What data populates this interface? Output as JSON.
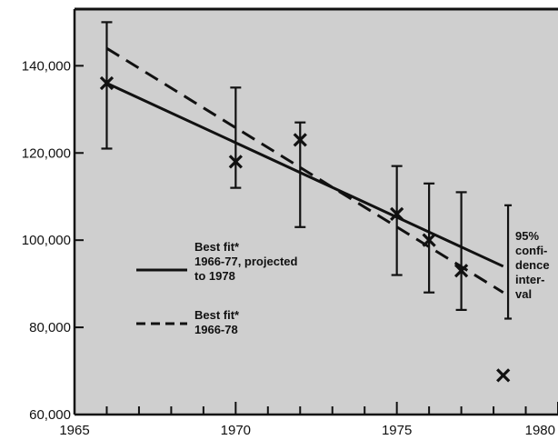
{
  "chart_data": {
    "type": "scatter",
    "x_ticks": [
      "1965",
      "1970",
      "1975",
      "1980"
    ],
    "y_ticks": [
      "60,000",
      "80,000",
      "100,000",
      "120,000",
      "140,000"
    ],
    "xlim": [
      1965,
      1980
    ],
    "ylim": [
      60000,
      153000
    ],
    "points": [
      {
        "x": 1966,
        "y": 136000,
        "low": 121000,
        "high": 150000
      },
      {
        "x": 1970,
        "y": 118000,
        "low": 112000,
        "high": 135000
      },
      {
        "x": 1972,
        "y": 123000,
        "low": 103000,
        "high": 127000
      },
      {
        "x": 1975,
        "y": 106000,
        "low": 92000,
        "high": 117000
      },
      {
        "x": 1976,
        "y": 100000,
        "low": 88000,
        "high": 113000
      },
      {
        "x": 1977,
        "y": 93000,
        "low": 84000,
        "high": 111000
      },
      {
        "x": 1978.3,
        "y": 69000,
        "low": null,
        "high": null
      }
    ],
    "series": [
      {
        "style": "solid",
        "x": [
          1966,
          1978.3
        ],
        "y": [
          136000,
          94000
        ]
      },
      {
        "style": "dashed",
        "x": [
          1966,
          1978.3
        ],
        "y": [
          144000,
          88000
        ]
      }
    ],
    "side_bar": {
      "x": 1978,
      "low": 82000,
      "high": 108000
    },
    "legend": [
      {
        "lines": [
          "Best fit*",
          "1966-77, projected",
          "to 1978"
        ],
        "style": "solid"
      },
      {
        "lines": [
          "Best fit*",
          "1966-78"
        ],
        "style": "dashed"
      }
    ],
    "side_note": [
      "95%",
      "confi-",
      "dence",
      "inter-",
      "val"
    ],
    "grid": false
  }
}
